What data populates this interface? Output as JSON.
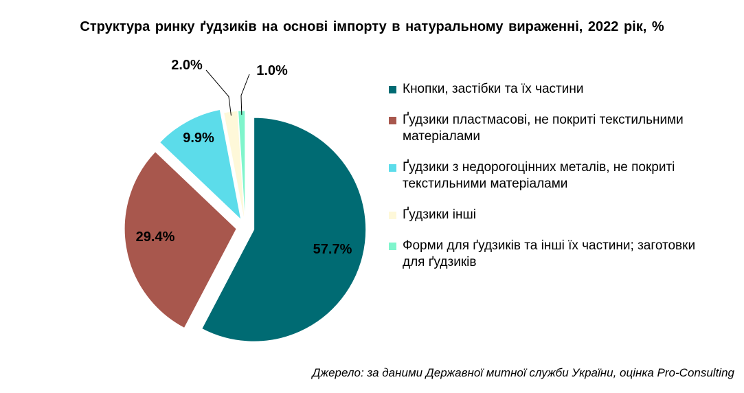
{
  "chart_data": {
    "type": "pie",
    "title": "Структура ринку ґудзиків на основі імпорту в натуральному вираженні, 2022 рік, %",
    "categories": [
      "Кнопки, застібки та їх частини",
      "Ґудзики пластмасові, не покриті текстильними матеріалами",
      "Ґудзики з недорогоцінних металів, не покриті текстильними матеріалами",
      "Ґудзики інші",
      "Форми для ґудзиків та інші їх частини; заготовки для ґудзиків"
    ],
    "values": [
      57.7,
      29.4,
      9.9,
      2.0,
      1.0
    ],
    "data_labels": [
      "57.7%",
      "29.4%",
      "9.9%",
      "2.0%",
      "1.0%"
    ],
    "colors": [
      "#006B73",
      "#A8574D",
      "#5CDCEA",
      "#FEF8D9",
      "#7FF5CC"
    ],
    "legend_position": "right",
    "exploded": true,
    "source": "Джерело: за даними Державної митної служби України, оцінка Pro-Consulting"
  }
}
